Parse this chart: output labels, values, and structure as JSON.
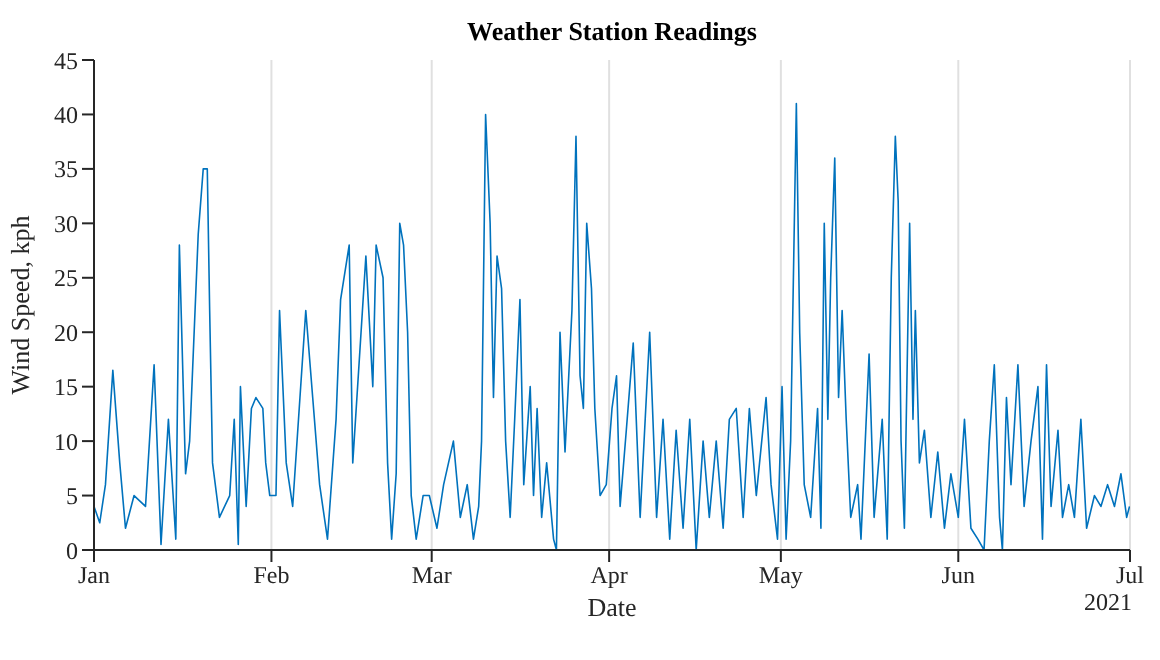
{
  "chart_data": {
    "type": "line",
    "title": "Weather Station Readings",
    "xlabel": "Date",
    "ylabel": "Wind Speed, kph",
    "annotations": [
      "2021"
    ],
    "grid": "x",
    "legend": false,
    "marker": "none",
    "line_style": "solid",
    "xlim": [
      "2021-01-01",
      "2021-07-01"
    ],
    "xticks": [
      {
        "value": "2021-01-01",
        "label": "Jan"
      },
      {
        "value": "2021-02-01",
        "label": "Feb"
      },
      {
        "value": "2021-03-01",
        "label": "Mar"
      },
      {
        "value": "2021-04-01",
        "label": "Apr"
      },
      {
        "value": "2021-05-01",
        "label": "May"
      },
      {
        "value": "2021-06-01",
        "label": "Jun"
      },
      {
        "value": "2021-07-01",
        "label": "Jul"
      }
    ],
    "ylim": [
      0,
      45
    ],
    "yticks": [
      0,
      5,
      10,
      15,
      20,
      25,
      30,
      35,
      40,
      45
    ],
    "x": [
      "2021-01-01T00:00",
      "2021-01-02T00:00",
      "2021-01-03T00:00",
      "2021-01-04T07:00",
      "2021-01-05T12:00",
      "2021-01-06T12:00",
      "2021-01-08T00:00",
      "2021-01-10T00:00",
      "2021-01-11T12:00",
      "2021-01-12T17:00",
      "2021-01-14T00:00",
      "2021-01-15T07:00",
      "2021-01-15T22:00",
      "2021-01-17T00:00",
      "2021-01-17T17:00",
      "2021-01-19T05:00",
      "2021-01-20T02:00",
      "2021-01-20T19:00",
      "2021-01-21T05:00",
      "2021-01-21T17:00",
      "2021-01-22T22:00",
      "2021-01-24T17:00",
      "2021-01-25T12:00",
      "2021-01-26T05:00",
      "2021-01-26T14:00",
      "2021-01-27T14:00",
      "2021-01-28T12:00",
      "2021-01-29T07:00",
      "2021-01-30T12:00",
      "2021-01-31T00:00",
      "2021-01-31T17:00",
      "2021-02-01T19:00",
      "2021-02-02T10:00",
      "2021-02-03T14:00",
      "2021-02-04T17:00",
      "2021-02-07T00:00",
      "2021-02-08T05:00",
      "2021-02-09T10:00",
      "2021-02-10T19:00",
      "2021-02-12T07:00",
      "2021-02-13T02:00",
      "2021-02-14T14:00",
      "2021-02-15T05:00",
      "2021-02-16T10:00",
      "2021-02-17T12:00",
      "2021-02-18T17:00",
      "2021-02-19T07:00",
      "2021-02-20T12:00",
      "2021-02-21T07:00",
      "2021-02-22T00:00",
      "2021-02-22T19:00",
      "2021-02-23T10:00",
      "2021-02-24T02:00",
      "2021-02-24T19:00",
      "2021-02-25T10:00",
      "2021-02-26T07:00",
      "2021-02-27T12:00",
      "2021-02-28T14:00",
      "2021-03-01T22:00",
      "2021-03-03T02:00",
      "2021-03-04T19:00",
      "2021-03-06T00:00",
      "2021-03-07T05:00",
      "2021-03-08T07:00",
      "2021-03-09T05:00",
      "2021-03-09T17:00",
      "2021-03-10T10:00",
      "2021-03-11T05:00",
      "2021-03-11T19:00",
      "2021-03-12T10:00",
      "2021-03-13T05:00",
      "2021-03-13T22:00",
      "2021-03-14T17:00",
      "2021-03-15T12:00",
      "2021-03-16T10:00",
      "2021-03-17T02:00",
      "2021-03-18T05:00",
      "2021-03-18T19:00",
      "2021-03-19T10:00",
      "2021-03-20T05:00",
      "2021-03-21T02:00",
      "2021-03-22T07:00",
      "2021-03-22T19:00",
      "2021-03-23T10:00",
      "2021-03-24T07:00",
      "2021-03-25T12:00",
      "2021-03-26T05:00",
      "2021-03-26T22:00",
      "2021-03-27T12:00",
      "2021-03-28T02:00",
      "2021-03-28T22:00",
      "2021-03-29T12:00",
      "2021-03-30T10:00",
      "2021-03-31T12:00",
      "2021-04-01T12:00",
      "2021-04-02T07:00",
      "2021-04-02T22:00",
      "2021-04-04T00:00",
      "2021-04-05T05:00",
      "2021-04-06T10:00",
      "2021-04-08T02:00",
      "2021-04-09T07:00",
      "2021-04-10T10:00",
      "2021-04-11T14:00",
      "2021-04-12T17:00",
      "2021-04-13T22:00",
      "2021-04-15T02:00",
      "2021-04-16T05:00",
      "2021-04-17T10:00",
      "2021-04-18T12:00",
      "2021-04-19T17:00",
      "2021-04-20T22:00",
      "2021-04-22T00:00",
      "2021-04-23T05:00",
      "2021-04-24T10:00",
      "2021-04-25T12:00",
      "2021-04-26T17:00",
      "2021-04-28T10:00",
      "2021-04-29T07:00",
      "2021-04-30T10:00",
      "2021-05-01T05:00",
      "2021-05-01T22:00",
      "2021-05-02T17:00",
      "2021-05-03T17:00",
      "2021-05-04T07:00",
      "2021-05-05T02:00",
      "2021-05-06T05:00",
      "2021-05-07T10:00",
      "2021-05-08T00:00",
      "2021-05-08T14:00",
      "2021-05-09T05:00",
      "2021-05-09T17:00",
      "2021-05-10T10:00",
      "2021-05-11T02:00",
      "2021-05-11T17:00",
      "2021-05-12T10:00",
      "2021-05-13T05:00",
      "2021-05-14T10:00",
      "2021-05-15T00:00",
      "2021-05-16T10:00",
      "2021-05-17T07:00",
      "2021-05-18T17:00",
      "2021-05-19T14:00",
      "2021-05-20T07:00",
      "2021-05-21T00:00",
      "2021-05-21T12:00",
      "2021-05-22T00:00",
      "2021-05-22T14:00",
      "2021-05-23T12:00",
      "2021-05-24T02:00",
      "2021-05-24T12:00",
      "2021-05-25T05:00",
      "2021-05-26T02:00",
      "2021-05-27T05:00",
      "2021-05-28T10:00",
      "2021-05-29T14:00",
      "2021-05-30T17:00",
      "2021-06-01T00:00",
      "2021-06-02T02:00",
      "2021-06-03T05:00",
      "2021-06-04T10:00",
      "2021-06-05T12:00",
      "2021-06-06T10:00",
      "2021-06-07T07:00",
      "2021-06-08T05:00",
      "2021-06-08T17:00",
      "2021-06-09T10:00",
      "2021-06-10T05:00",
      "2021-06-11T10:00",
      "2021-06-12T12:00",
      "2021-06-13T17:00",
      "2021-06-14T22:00",
      "2021-06-15T17:00",
      "2021-06-16T10:00",
      "2021-06-17T05:00",
      "2021-06-18T10:00",
      "2021-06-19T05:00",
      "2021-06-20T07:00",
      "2021-06-21T07:00",
      "2021-06-22T10:00",
      "2021-06-23T10:00",
      "2021-06-24T19:00",
      "2021-06-25T22:00",
      "2021-06-27T02:00",
      "2021-06-28T07:00",
      "2021-06-29T10:00",
      "2021-06-30T10:00",
      "2021-06-30T22:00"
    ],
    "series": [
      {
        "color": "#0072bd",
        "values": [
          4,
          2.5,
          6,
          16.5,
          8,
          2,
          5,
          4,
          17,
          0.5,
          12,
          1,
          28,
          7,
          10,
          29,
          35,
          35,
          22,
          8,
          3,
          5,
          12,
          0.5,
          15,
          4,
          13,
          14,
          13,
          8,
          5,
          5,
          22,
          8,
          4,
          22,
          14,
          6,
          1,
          12,
          23,
          28,
          8,
          18,
          27,
          15,
          28,
          25,
          8,
          1,
          7,
          30,
          28,
          20,
          5,
          1,
          5,
          5,
          2,
          6,
          10,
          3,
          6,
          1,
          4,
          10,
          40,
          30,
          14,
          27,
          24,
          10,
          3,
          12,
          23,
          6,
          15,
          5,
          13,
          3,
          8,
          1,
          0,
          20,
          9,
          22,
          38,
          16,
          13,
          30,
          24,
          13,
          5,
          6,
          13,
          16,
          4,
          11,
          19,
          3,
          20,
          3,
          12,
          1,
          11,
          2,
          12,
          0,
          10,
          3,
          10,
          2,
          12,
          13,
          3,
          13,
          5,
          14,
          6,
          1,
          15,
          1,
          10,
          41,
          20,
          6,
          3,
          13,
          2,
          30,
          12,
          25,
          36,
          14,
          22,
          12,
          3,
          6,
          1,
          18,
          3,
          12,
          1,
          25,
          38,
          32,
          10,
          2,
          30,
          12,
          22,
          8,
          11,
          3,
          9,
          2,
          7,
          3,
          12,
          2,
          1,
          0,
          10,
          17,
          3,
          0,
          14,
          6,
          17,
          4,
          10,
          15,
          1,
          17,
          4,
          11,
          3,
          6,
          3,
          12,
          2,
          5,
          4,
          6,
          4,
          7,
          3,
          4
        ]
      }
    ]
  }
}
